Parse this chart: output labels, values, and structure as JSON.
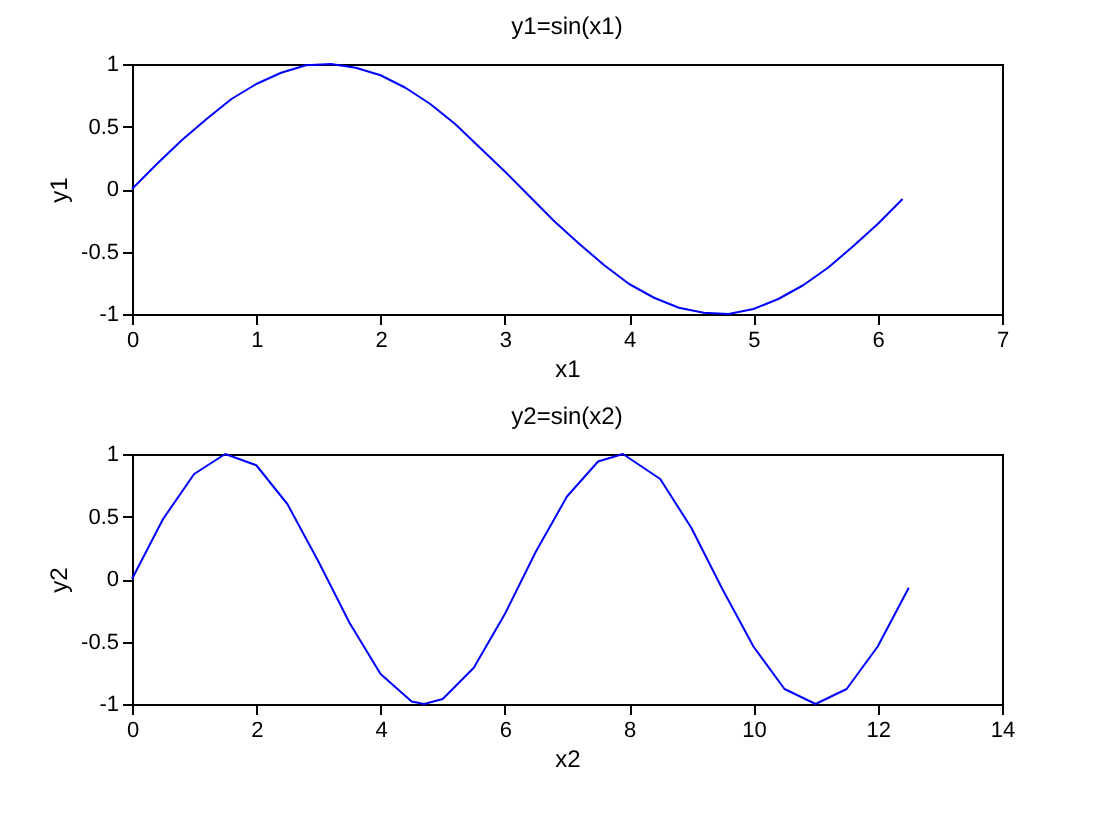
{
  "chart_data": [
    {
      "type": "line",
      "title": "y1=sin(x1)",
      "xlabel": "x1",
      "ylabel": "y1",
      "xlim": [
        0,
        7
      ],
      "xticks": [
        0,
        1,
        2,
        3,
        4,
        5,
        6,
        7
      ],
      "ylim": [
        -1,
        1
      ],
      "yticks": [
        -1,
        -0.5,
        0,
        0.5,
        1
      ],
      "grid": false,
      "marker": "none",
      "line_style": "solid",
      "series": [
        {
          "color": "#0000ff",
          "x": [
            0,
            0.2,
            0.4,
            0.6,
            0.8,
            1.0,
            1.2,
            1.4,
            1.6,
            1.8,
            2.0,
            2.2,
            2.4,
            2.6,
            2.8,
            3.0,
            3.2,
            3.4,
            3.6,
            3.8,
            4.0,
            4.2,
            4.4,
            4.6,
            4.8,
            5.0,
            5.2,
            5.4,
            5.6,
            5.8,
            6.0,
            6.2
          ],
          "values": [
            0,
            0.2,
            0.39,
            0.56,
            0.72,
            0.84,
            0.93,
            0.99,
            1.0,
            0.97,
            0.91,
            0.81,
            0.68,
            0.52,
            0.33,
            0.14,
            -0.06,
            -0.26,
            -0.44,
            -0.61,
            -0.76,
            -0.87,
            -0.95,
            -0.99,
            -1.0,
            -0.96,
            -0.88,
            -0.77,
            -0.63,
            -0.46,
            -0.28,
            -0.08
          ]
        }
      ]
    },
    {
      "type": "line",
      "title": "y2=sin(x2)",
      "xlabel": "x2",
      "ylabel": "y2",
      "xlim": [
        0,
        14
      ],
      "xticks": [
        0,
        2,
        4,
        6,
        8,
        10,
        12,
        14
      ],
      "ylim": [
        -1,
        1
      ],
      "yticks": [
        -1,
        -0.5,
        0,
        0.5,
        1
      ],
      "grid": false,
      "marker": "none",
      "line_style": "solid",
      "series": [
        {
          "color": "#0000ff",
          "x": [
            0,
            0.5,
            1,
            1.5,
            2,
            2.5,
            3,
            3.5,
            4,
            4.5,
            4.7,
            5,
            5.5,
            6,
            6.5,
            7,
            7.5,
            7.9,
            8.5,
            9,
            9.5,
            10,
            10.5,
            11,
            11.5,
            12,
            12.5
          ],
          "values": [
            0,
            0.48,
            0.84,
            1.0,
            0.91,
            0.6,
            0.14,
            -0.35,
            -0.76,
            -0.98,
            -1.0,
            -0.96,
            -0.71,
            -0.28,
            0.22,
            0.66,
            0.94,
            1.0,
            0.8,
            0.41,
            -0.08,
            -0.54,
            -0.88,
            -1.0,
            -0.88,
            -0.54,
            -0.07
          ]
        }
      ]
    }
  ]
}
